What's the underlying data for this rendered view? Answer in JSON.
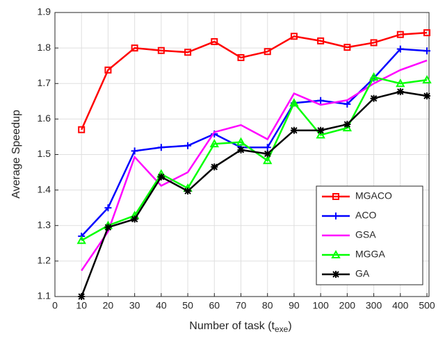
{
  "chart_data": {
    "type": "line",
    "x_label": [
      "Number of task (t",
      "exe",
      ")"
    ],
    "y_label": "Average Speedup",
    "categories": [
      "0",
      "10",
      "20",
      "30",
      "40",
      "50",
      "60",
      "70",
      "80",
      "90",
      "100",
      "200",
      "300",
      "400",
      "500"
    ],
    "series": [
      {
        "name": "MGACO",
        "color": "#ff0000",
        "marker": "square",
        "values": [
          null,
          1.57,
          1.738,
          1.8,
          1.793,
          1.788,
          1.818,
          1.773,
          1.79,
          1.833,
          1.82,
          1.802,
          1.815,
          1.838,
          1.843
        ]
      },
      {
        "name": "ACO",
        "color": "#0000ff",
        "marker": "plus",
        "values": [
          null,
          1.27,
          1.35,
          1.51,
          1.52,
          1.525,
          1.558,
          1.52,
          1.52,
          1.645,
          1.652,
          1.642,
          1.715,
          1.797,
          1.792
        ]
      },
      {
        "name": "GSA",
        "color": "#ff00ff",
        "marker": "none",
        "values": [
          null,
          1.173,
          1.283,
          1.493,
          1.412,
          1.45,
          1.563,
          1.583,
          1.543,
          1.672,
          1.64,
          1.653,
          1.7,
          1.738,
          1.765
        ]
      },
      {
        "name": "MGGA",
        "color": "#00ff00",
        "marker": "triangle",
        "values": [
          null,
          1.258,
          1.3,
          1.328,
          1.445,
          1.405,
          1.53,
          1.535,
          1.483,
          1.645,
          1.555,
          1.575,
          1.718,
          1.7,
          1.71
        ]
      },
      {
        "name": "GA",
        "color": "#000000",
        "marker": "asterisk",
        "values": [
          null,
          1.1,
          1.295,
          1.318,
          1.437,
          1.397,
          1.465,
          1.513,
          1.502,
          1.568,
          1.568,
          1.585,
          1.658,
          1.677,
          1.665
        ]
      }
    ],
    "ylim": [
      1.1,
      1.9
    ],
    "yticks": [
      1.1,
      1.2,
      1.3,
      1.4,
      1.5,
      1.6,
      1.7,
      1.8,
      1.9
    ],
    "grid": true,
    "legend": "lower right"
  }
}
